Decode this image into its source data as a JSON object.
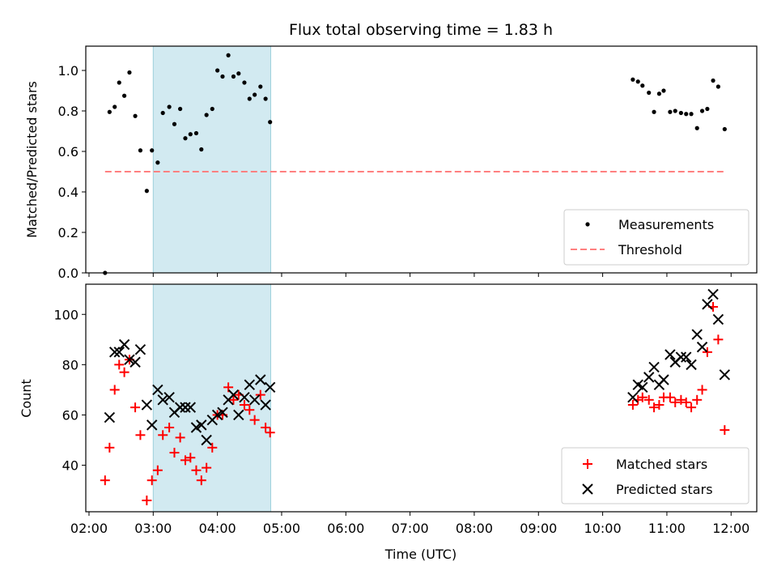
{
  "chart_data": [
    {
      "type": "scatter",
      "title": "Flux total observing time = 1.83 h",
      "ylabel": "Matched/Predicted stars",
      "xlabel": "",
      "x_unit": "hours UTC",
      "xlim": [
        1.95,
        12.4
      ],
      "ylim": [
        0.0,
        1.12
      ],
      "yticks": [
        0.0,
        0.2,
        0.4,
        0.6,
        0.8,
        1.0
      ],
      "ytick_labels": [
        "0.0",
        "0.2",
        "0.4",
        "0.6",
        "0.8",
        "1.0"
      ],
      "legend_position": "bottom-right",
      "highlight_span": [
        3.0,
        4.83
      ],
      "series": [
        {
          "name": "Measurements",
          "color": "#000000",
          "marker": "dot",
          "x": [
            2.25,
            2.32,
            2.4,
            2.47,
            2.55,
            2.63,
            2.72,
            2.8,
            2.9,
            2.98,
            3.07,
            3.15,
            3.25,
            3.33,
            3.42,
            3.5,
            3.58,
            3.67,
            3.75,
            3.83,
            3.92,
            4.0,
            4.08,
            4.17,
            4.25,
            4.33,
            4.42,
            4.5,
            4.58,
            4.67,
            4.75,
            4.82,
            10.47,
            10.55,
            10.62,
            10.72,
            10.8,
            10.88,
            10.95,
            11.05,
            11.13,
            11.22,
            11.3,
            11.38,
            11.47,
            11.55,
            11.63,
            11.72,
            11.8,
            11.9
          ],
          "y": [
            0.0,
            0.795,
            0.82,
            0.94,
            0.875,
            0.99,
            0.775,
            0.605,
            0.405,
            0.605,
            0.545,
            0.79,
            0.82,
            0.735,
            0.81,
            0.665,
            0.685,
            0.69,
            0.61,
            0.78,
            0.81,
            1.0,
            0.97,
            1.075,
            0.97,
            0.985,
            0.94,
            0.86,
            0.88,
            0.92,
            0.86,
            0.745,
            0.955,
            0.945,
            0.925,
            0.89,
            0.795,
            0.885,
            0.9,
            0.795,
            0.8,
            0.79,
            0.785,
            0.785,
            0.715,
            0.8,
            0.81,
            0.95,
            0.92,
            0.71
          ]
        },
        {
          "name": "Threshold",
          "color": "#ff8080",
          "style": "dashed",
          "x": [
            2.25,
            11.92
          ],
          "y": [
            0.5,
            0.5
          ]
        }
      ]
    },
    {
      "type": "scatter",
      "title": "",
      "ylabel": "Count",
      "xlabel": "Time (UTC)",
      "x_unit": "hours UTC",
      "xlim": [
        1.95,
        12.4
      ],
      "ylim": [
        21.5,
        112
      ],
      "yticks": [
        40,
        60,
        80,
        100
      ],
      "ytick_labels": [
        "40",
        "60",
        "80",
        "100"
      ],
      "xticks": [
        2,
        3,
        4,
        5,
        6,
        7,
        8,
        9,
        10,
        11,
        12
      ],
      "xtick_labels": [
        "02:00",
        "03:00",
        "04:00",
        "05:00",
        "06:00",
        "07:00",
        "08:00",
        "09:00",
        "10:00",
        "11:00",
        "12:00"
      ],
      "legend_position": "bottom-right",
      "highlight_span": [
        3.0,
        4.83
      ],
      "series": [
        {
          "name": "Matched stars",
          "color": "#ff0000",
          "marker": "plus",
          "x": [
            2.25,
            2.32,
            2.4,
            2.47,
            2.55,
            2.63,
            2.72,
            2.8,
            2.9,
            2.98,
            3.07,
            3.15,
            3.25,
            3.33,
            3.42,
            3.5,
            3.58,
            3.67,
            3.75,
            3.83,
            3.92,
            4.0,
            4.08,
            4.17,
            4.25,
            4.33,
            4.42,
            4.5,
            4.58,
            4.67,
            4.75,
            4.82,
            10.47,
            10.55,
            10.62,
            10.72,
            10.8,
            10.88,
            10.95,
            11.05,
            11.13,
            11.22,
            11.3,
            11.38,
            11.47,
            11.55,
            11.63,
            11.72,
            11.8,
            11.9
          ],
          "y": [
            34,
            47,
            70,
            80,
            77,
            82,
            63,
            52,
            26,
            34,
            38,
            52,
            55,
            45,
            51,
            42,
            43,
            38,
            34,
            39,
            47,
            60,
            60,
            71,
            66,
            68,
            64,
            62,
            58,
            68,
            55,
            53,
            64,
            66,
            67,
            66,
            63,
            64,
            67,
            67,
            65,
            66,
            65,
            63,
            66,
            70,
            85,
            103,
            90,
            54
          ]
        },
        {
          "name": "Predicted stars",
          "color": "#000000",
          "marker": "x",
          "x": [
            2.32,
            2.4,
            2.47,
            2.55,
            2.63,
            2.72,
            2.8,
            2.9,
            2.98,
            3.07,
            3.15,
            3.25,
            3.33,
            3.42,
            3.5,
            3.58,
            3.67,
            3.75,
            3.83,
            3.92,
            4.0,
            4.08,
            4.17,
            4.25,
            4.33,
            4.42,
            4.5,
            4.58,
            4.67,
            4.75,
            4.82,
            10.47,
            10.55,
            10.62,
            10.72,
            10.8,
            10.88,
            10.95,
            11.05,
            11.13,
            11.22,
            11.3,
            11.38,
            11.47,
            11.55,
            11.63,
            11.72,
            11.8,
            11.9
          ],
          "y": [
            59,
            85,
            85,
            88,
            82,
            81,
            86,
            64,
            56,
            70,
            66,
            67,
            61,
            63,
            63,
            63,
            55,
            56,
            50,
            58,
            60,
            61,
            66,
            68,
            60,
            67,
            72,
            66,
            74,
            64,
            71,
            67,
            72,
            71,
            75,
            79,
            72,
            74,
            84,
            81,
            83,
            83,
            80,
            92,
            87,
            104,
            108,
            98,
            76
          ]
        }
      ]
    }
  ]
}
